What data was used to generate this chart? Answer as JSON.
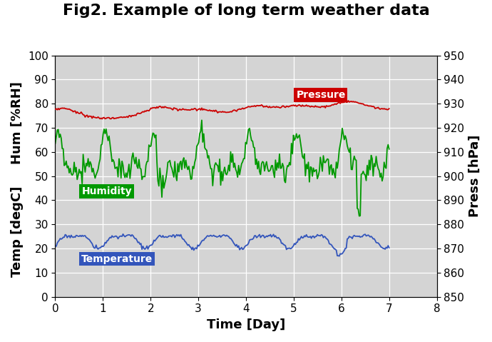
{
  "title": "Fig2. Example of long term weather data",
  "xlabel": "Time [Day]",
  "ylabel_hum": "Hum [%RH]",
  "ylabel_temp": "Temp [degC]",
  "ylabel_right": "Press [hPa]",
  "xlim": [
    0,
    8
  ],
  "ylim_left": [
    0,
    100
  ],
  "ylim_right": [
    850,
    950
  ],
  "xticks": [
    0,
    1,
    2,
    3,
    4,
    5,
    6,
    7,
    8
  ],
  "yticks_left": [
    0,
    10,
    20,
    30,
    40,
    50,
    60,
    70,
    80,
    90,
    100
  ],
  "yticks_right": [
    850,
    860,
    870,
    880,
    890,
    900,
    910,
    920,
    930,
    940,
    950
  ],
  "bg_color": "#d4d4d4",
  "temp_color": "#3355bb",
  "hum_color": "#009900",
  "press_color": "#cc0000",
  "temp_label": "Temperature",
  "hum_label": "Humidity",
  "press_label": "Pressure",
  "label_bg_temp": "#3355bb",
  "label_bg_hum": "#009900",
  "label_bg_press": "#cc0000",
  "label_text_color": "#ffffff",
  "title_fontsize": 16,
  "axis_fontsize": 13,
  "tick_fontsize": 11,
  "n_points": 336,
  "seed": 17
}
